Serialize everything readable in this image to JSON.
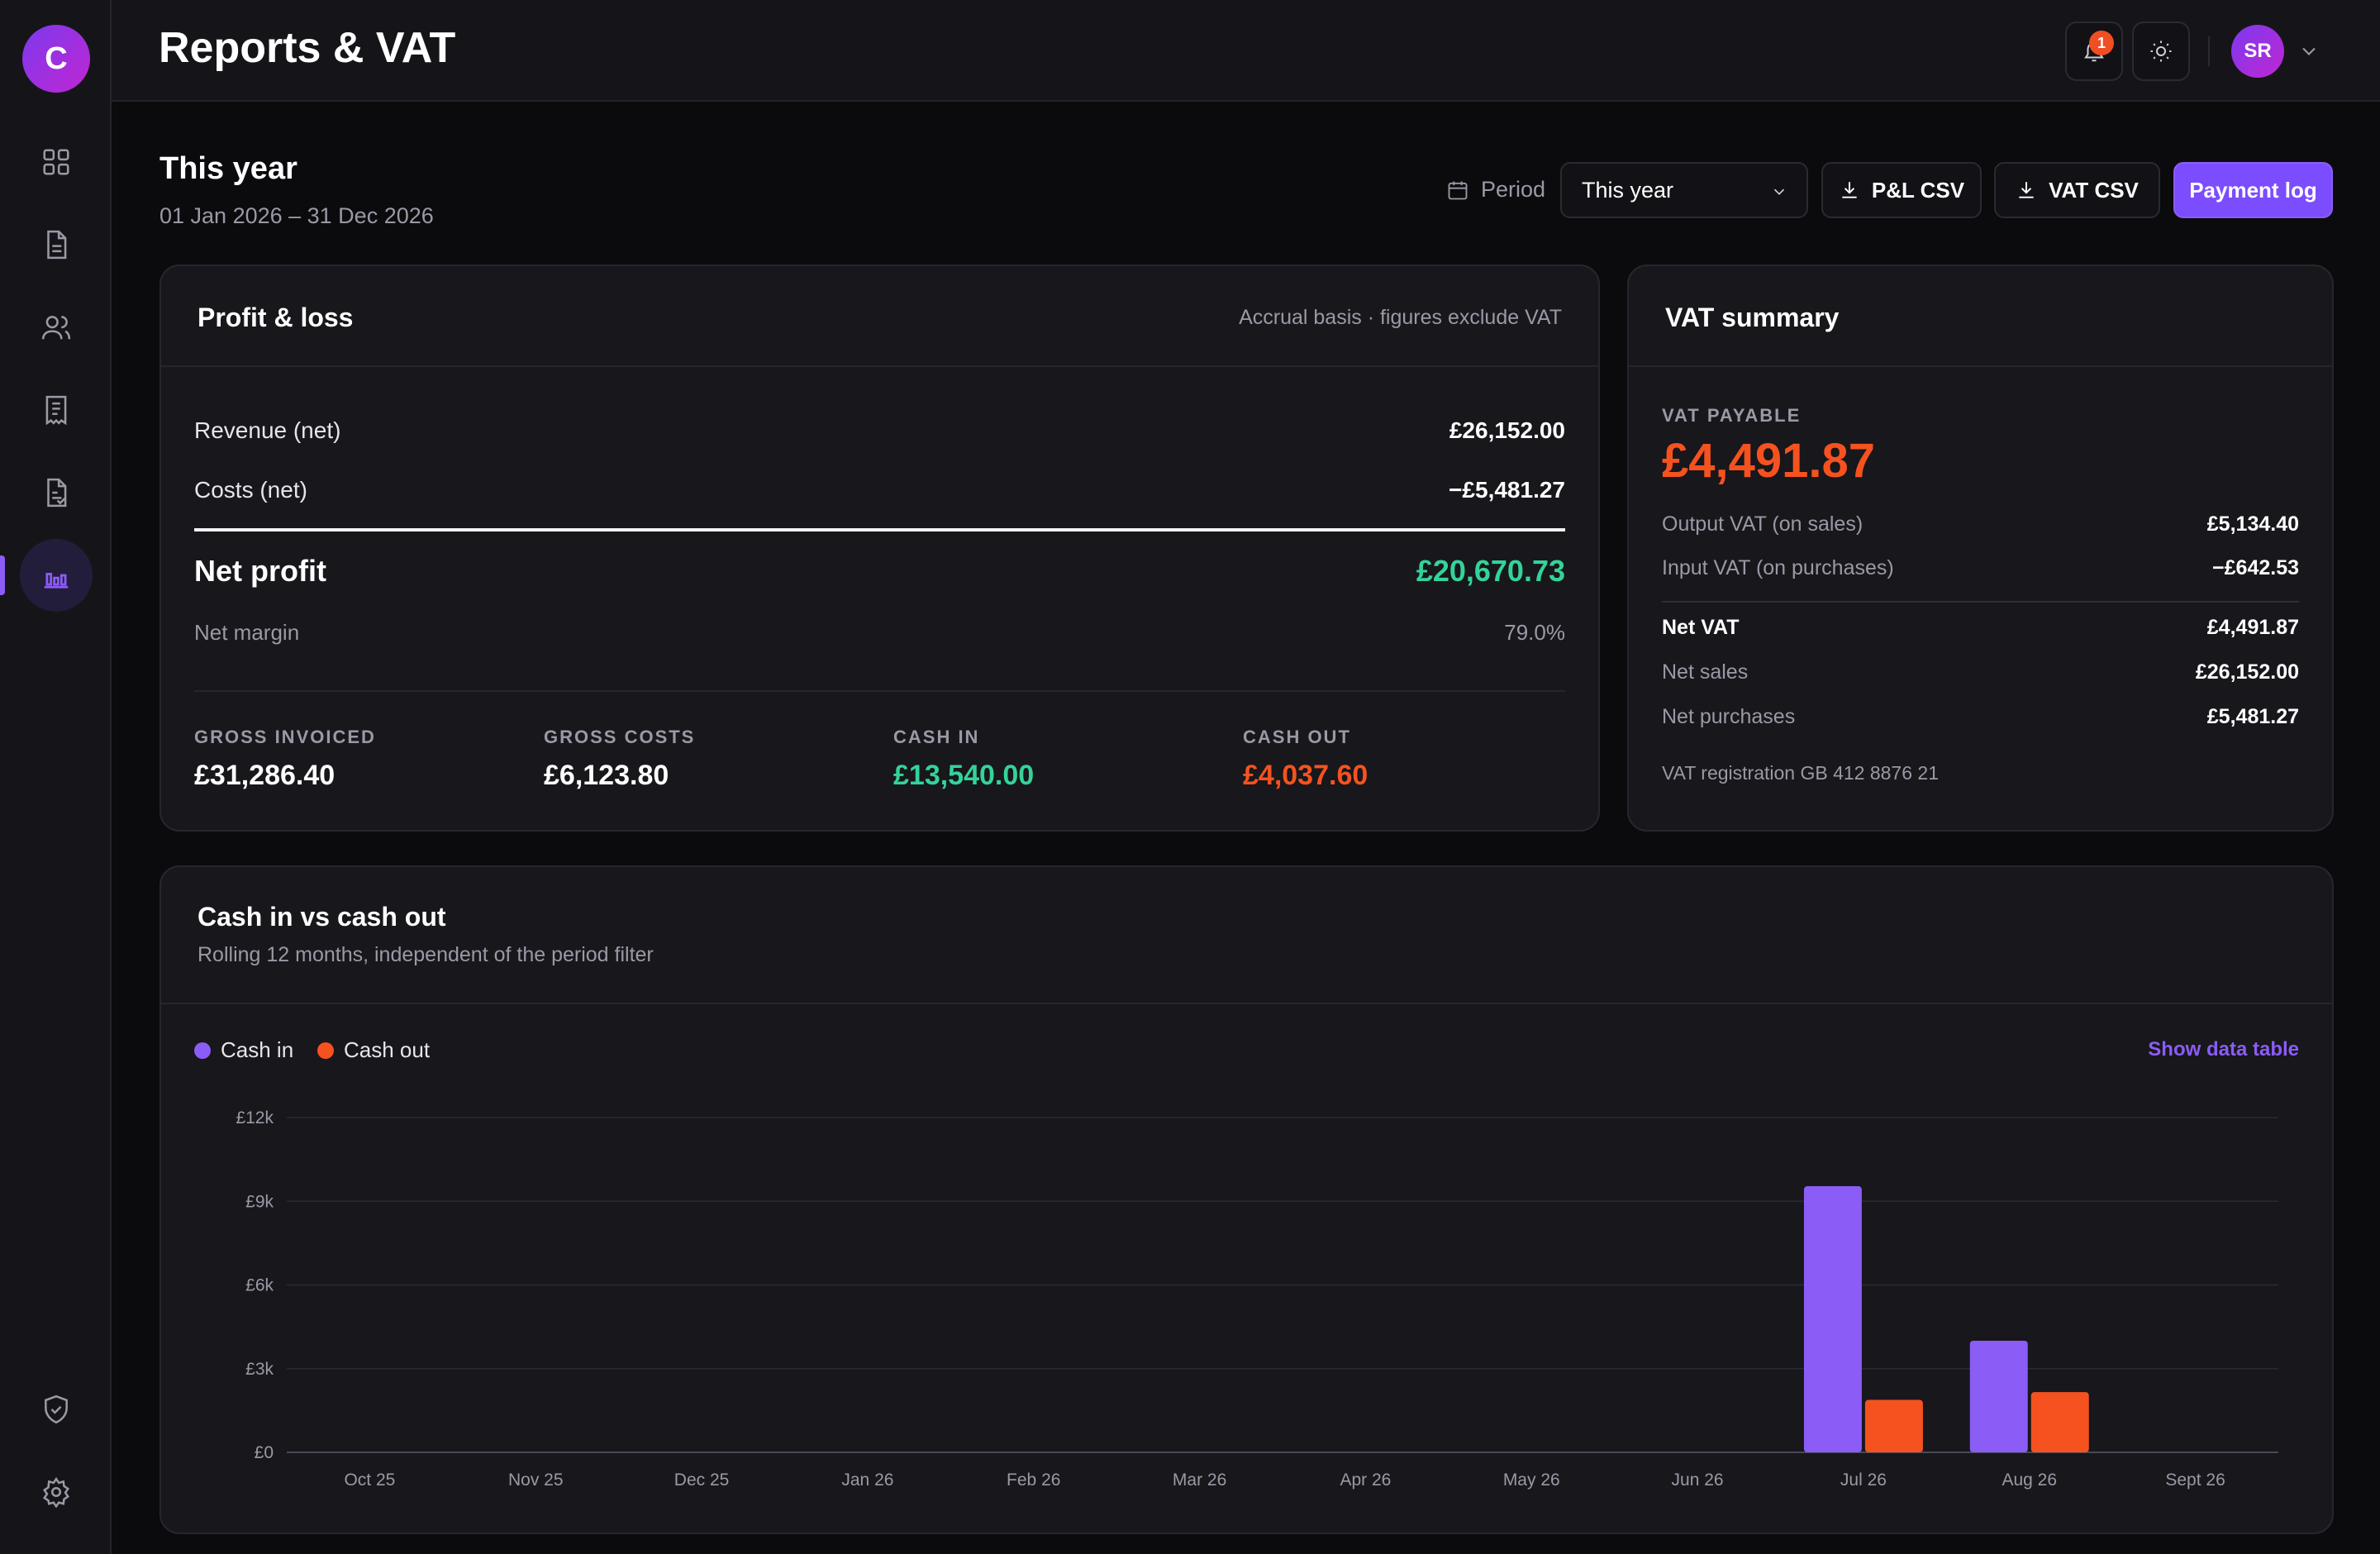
{
  "app": {
    "logo_letter": "C"
  },
  "sidebar": {
    "items": [
      {
        "icon": "grid-icon"
      },
      {
        "icon": "document-icon"
      },
      {
        "icon": "users-icon"
      },
      {
        "icon": "receipt-icon"
      },
      {
        "icon": "invoice-icon"
      },
      {
        "icon": "bar-chart-icon",
        "active": true
      }
    ],
    "bottom": [
      {
        "icon": "shield-check-icon"
      },
      {
        "icon": "gear-icon"
      }
    ]
  },
  "header": {
    "title": "Reports & VAT",
    "notifications_count": "1",
    "user_initials": "SR"
  },
  "period": {
    "title": "This year",
    "range": "01 Jan 2026 – 31 Dec 2026",
    "label": "Period",
    "selected": "This year",
    "pl_csv": "P&L CSV",
    "vat_csv": "VAT CSV",
    "payment_log": "Payment log"
  },
  "pl": {
    "title": "Profit & loss",
    "basis": "Accrual basis · figures exclude VAT",
    "revenue_label": "Revenue (net)",
    "revenue_value": "£26,152.00",
    "costs_label": "Costs (net)",
    "costs_value": "−£5,481.27",
    "net_profit_label": "Net profit",
    "net_profit_value": "£20,670.73",
    "net_margin_label": "Net margin",
    "net_margin_value": "79.0%",
    "stats": [
      {
        "label": "GROSS INVOICED",
        "value": "£31,286.40",
        "tone": "white"
      },
      {
        "label": "GROSS COSTS",
        "value": "£6,123.80",
        "tone": "white"
      },
      {
        "label": "CASH IN",
        "value": "£13,540.00",
        "tone": "green"
      },
      {
        "label": "CASH OUT",
        "value": "£4,037.60",
        "tone": "red"
      }
    ]
  },
  "vat": {
    "title": "VAT summary",
    "payable_label": "VAT PAYABLE",
    "payable_value": "£4,491.87",
    "output_label": "Output VAT (on sales)",
    "output_value": "£5,134.40",
    "input_label": "Input VAT (on purchases)",
    "input_value": "−£642.53",
    "net_vat_label": "Net VAT",
    "net_vat_value": "£4,491.87",
    "net_sales_label": "Net sales",
    "net_sales_value": "£26,152.00",
    "net_purchases_label": "Net purchases",
    "net_purchases_value": "£5,481.27",
    "registration": "VAT registration GB 412 8876 21"
  },
  "cash_chart": {
    "title": "Cash in vs cash out",
    "subtitle": "Rolling 12 months, independent of the period filter",
    "show_table": "Show data table"
  },
  "colors": {
    "accent": "#8b5cf6",
    "cash_in": "#8b5cf6",
    "cash_out": "#f5521f",
    "positive": "#34d399"
  },
  "chart_data": {
    "type": "bar",
    "categories": [
      "Oct 25",
      "Nov 25",
      "Dec 25",
      "Jan 26",
      "Feb 26",
      "Mar 26",
      "Apr 26",
      "May 26",
      "Jun 26",
      "Jul 26",
      "Aug 26",
      "Sept 26"
    ],
    "series": [
      {
        "name": "Cash in",
        "values": [
          0,
          0,
          0,
          0,
          0,
          0,
          0,
          0,
          0,
          9540,
          4000,
          0
        ]
      },
      {
        "name": "Cash out",
        "values": [
          0,
          0,
          0,
          0,
          0,
          0,
          0,
          0,
          0,
          1880,
          2158,
          0
        ]
      }
    ],
    "yticks": [
      "£0",
      "£3k",
      "£6k",
      "£9k",
      "£12k"
    ],
    "ylim": [
      0,
      12000
    ],
    "legend": "top-left",
    "grid": true
  }
}
